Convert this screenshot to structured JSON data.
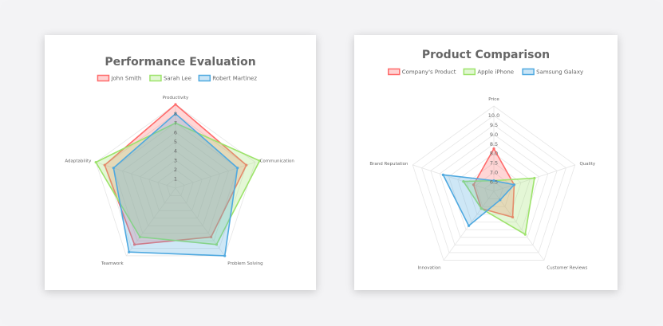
{
  "chart_data": [
    {
      "type": "radar",
      "title": "Performance Evaluation",
      "categories": [
        "Productivity",
        "Communication",
        "Problem Solving",
        "Teamwork",
        "Adaptability"
      ],
      "rlim": [
        0,
        9
      ],
      "ticks": [
        "1",
        "2",
        "3",
        "4",
        "5",
        "6",
        "7",
        "8"
      ],
      "grid": true,
      "legend_position": "top",
      "series": [
        {
          "name": "John Smith",
          "values": [
            9,
            8,
            6.5,
            7.5,
            8
          ],
          "color": "#ff6b6b"
        },
        {
          "name": "Sarah Lee",
          "values": [
            7,
            9.5,
            7.5,
            6.5,
            9
          ],
          "color": "#9de36b"
        },
        {
          "name": "Robert Martinez",
          "values": [
            8,
            7,
            9,
            8.5,
            7
          ],
          "color": "#4fa9e0"
        }
      ]
    },
    {
      "type": "radar",
      "title": "Product Comparison",
      "categories": [
        "Price",
        "Quality",
        "Customer Reviews",
        "Innovation",
        "Brand Reputation"
      ],
      "rlim": [
        6,
        10
      ],
      "ticks": [
        "6.5",
        "7.0",
        "7.5",
        "8.0",
        "8.5",
        "9.0",
        "9.5",
        "10.0"
      ],
      "grid": true,
      "legend_position": "top",
      "series": [
        {
          "name": "Company's Product",
          "values": [
            8,
            7,
            7.5,
            7,
            7
          ],
          "color": "#ff6b6b"
        },
        {
          "name": "Apple iPhone",
          "values": [
            6.5,
            8,
            8.5,
            7,
            7.5
          ],
          "color": "#9de36b"
        },
        {
          "name": "Samsung Galaxy",
          "values": [
            6.5,
            7,
            6.5,
            8,
            8.5
          ],
          "color": "#4fa9e0"
        }
      ]
    }
  ]
}
